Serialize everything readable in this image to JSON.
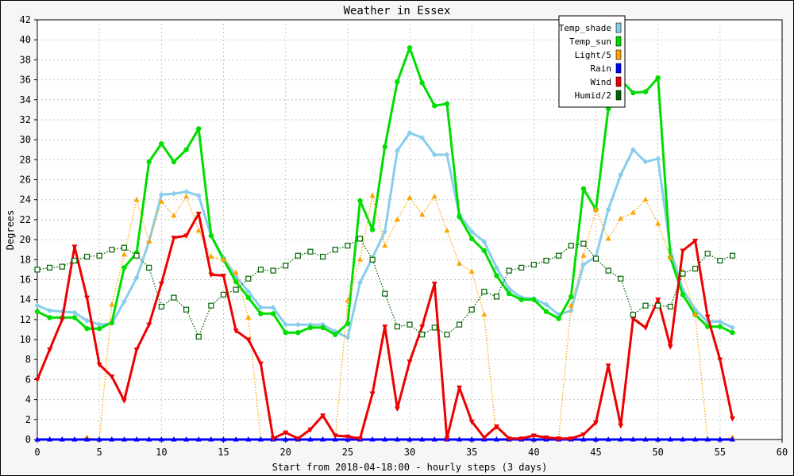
{
  "chart_data": {
    "type": "line",
    "title": "Weather in Essex",
    "xlabel": "Start from 2018-04-18:00 - hourly steps (3 days)",
    "ylabel": "Degrees",
    "xlim": [
      0,
      60
    ],
    "ylim": [
      0,
      42
    ],
    "x_ticks": [
      0,
      5,
      10,
      15,
      20,
      25,
      30,
      35,
      40,
      45,
      50,
      55,
      60
    ],
    "y_ticks": [
      0,
      2,
      4,
      6,
      8,
      10,
      12,
      14,
      16,
      18,
      20,
      22,
      24,
      26,
      28,
      30,
      32,
      34,
      36,
      38,
      40,
      42
    ],
    "grid": true,
    "legend_position": "top-right",
    "series": [
      {
        "name": "Temp_shade",
        "color": "#87ceeb",
        "style": "solid",
        "marker": "diamond",
        "values": [
          13.4,
          12.9,
          12.8,
          12.7,
          11.9,
          11.5,
          11.6,
          13.8,
          16.2,
          19.8,
          24.5,
          24.6,
          24.8,
          24.4,
          20.4,
          18.2,
          16.3,
          14.8,
          13.2,
          13.2,
          11.5,
          11.5,
          11.5,
          11.5,
          10.8,
          10.2,
          15.7,
          18.2,
          20.8,
          28.9,
          30.7,
          30.2,
          28.5,
          28.5,
          22.5,
          20.8,
          19.8,
          17.2,
          15.1,
          14.2,
          14.1,
          13.5,
          12.5,
          12.9,
          17.5,
          18.3,
          23.0,
          26.5,
          29.0,
          27.8,
          28.1,
          19.0,
          15.0,
          13.0,
          11.8,
          11.8,
          11.2
        ]
      },
      {
        "name": "Temp_sun",
        "color": "#00dd00",
        "style": "solid",
        "marker": "circle",
        "values": [
          12.8,
          12.2,
          12.2,
          12.2,
          11.1,
          11.1,
          11.7,
          17.2,
          18.7,
          27.8,
          29.6,
          27.8,
          29.0,
          31.1,
          20.4,
          18.0,
          15.8,
          14.2,
          12.6,
          12.6,
          10.7,
          10.7,
          11.2,
          11.2,
          10.5,
          11.6,
          23.9,
          21.0,
          29.3,
          35.8,
          39.2,
          35.7,
          33.4,
          33.6,
          22.3,
          20.1,
          18.9,
          16.4,
          14.6,
          14.0,
          14.0,
          12.8,
          12.1,
          14.3,
          25.1,
          23.0,
          33.1,
          36.0,
          34.7,
          34.8,
          36.2,
          18.2,
          14.5,
          12.5,
          11.3,
          11.3,
          10.7
        ]
      },
      {
        "name": "Light/5",
        "color": "#ffa500",
        "style": "dotted",
        "marker": "triangle",
        "values": [
          0,
          0,
          0,
          0,
          0.2,
          0,
          13.5,
          18.5,
          24.0,
          19.8,
          23.8,
          22.4,
          24.3,
          20.9,
          18.3,
          18.0,
          16.7,
          12.2,
          0,
          0,
          0,
          0,
          0,
          0,
          0,
          13.9,
          18.0,
          24.4,
          19.4,
          22.0,
          24.2,
          22.5,
          24.3,
          20.9,
          17.6,
          16.8,
          12.5,
          0,
          0,
          0,
          0,
          0,
          0,
          13.4,
          18.4,
          23.0,
          20.1,
          22.1,
          22.7,
          24.0,
          21.6,
          18.2,
          16.8,
          12.5,
          0,
          0,
          0.2
        ]
      },
      {
        "name": "Rain",
        "color": "#0000ff",
        "style": "solid",
        "marker": "triangle",
        "values": [
          0,
          0,
          0,
          0,
          0,
          0,
          0,
          0,
          0,
          0,
          0,
          0,
          0,
          0,
          0,
          0,
          0,
          0,
          0,
          0,
          0,
          0,
          0,
          0,
          0,
          0,
          0,
          0,
          0,
          0,
          0,
          0,
          0,
          0,
          0,
          0,
          0,
          0,
          0,
          0,
          0,
          0,
          0,
          0,
          0,
          0,
          0,
          0,
          0,
          0,
          0,
          0,
          0,
          0,
          0,
          0,
          0
        ]
      },
      {
        "name": "Wind",
        "color": "#ee0000",
        "style": "solid",
        "marker": "inv-triangle",
        "values": [
          6.0,
          9.0,
          12.0,
          19.3,
          14.2,
          7.5,
          6.3,
          3.9,
          9.0,
          11.5,
          15.6,
          20.2,
          20.4,
          22.6,
          16.5,
          16.4,
          10.9,
          10.0,
          7.6,
          0.1,
          0.7,
          0.1,
          1.0,
          2.4,
          0.4,
          0.3,
          0.1,
          4.6,
          11.3,
          3.1,
          7.8,
          11.3,
          15.6,
          0.1,
          5.2,
          1.8,
          0.2,
          1.3,
          0.1,
          0.1,
          0.4,
          0.2,
          0.1,
          0.1,
          0.5,
          1.7,
          7.4,
          1.4,
          12.1,
          11.2,
          14.0,
          9.3,
          18.9,
          19.9,
          12.3,
          8.0,
          2.1
        ]
      },
      {
        "name": "Humid/2",
        "color": "#006400",
        "style": "dotted",
        "marker": "square",
        "values": [
          17.0,
          17.2,
          17.3,
          17.9,
          18.3,
          18.4,
          19.0,
          19.2,
          18.4,
          17.2,
          13.3,
          14.2,
          13.0,
          10.3,
          13.4,
          14.5,
          15.0,
          16.1,
          17.0,
          16.9,
          17.4,
          18.4,
          18.8,
          18.3,
          19.0,
          19.4,
          20.1,
          18.0,
          14.6,
          11.3,
          11.5,
          10.5,
          11.2,
          10.5,
          11.5,
          13.0,
          14.8,
          14.3,
          16.9,
          17.2,
          17.5,
          17.9,
          18.4,
          19.4,
          19.6,
          18.1,
          16.9,
          16.1,
          12.5,
          13.4,
          13.4,
          13.3,
          16.6,
          17.1,
          18.6,
          17.9,
          18.4
        ]
      }
    ]
  }
}
